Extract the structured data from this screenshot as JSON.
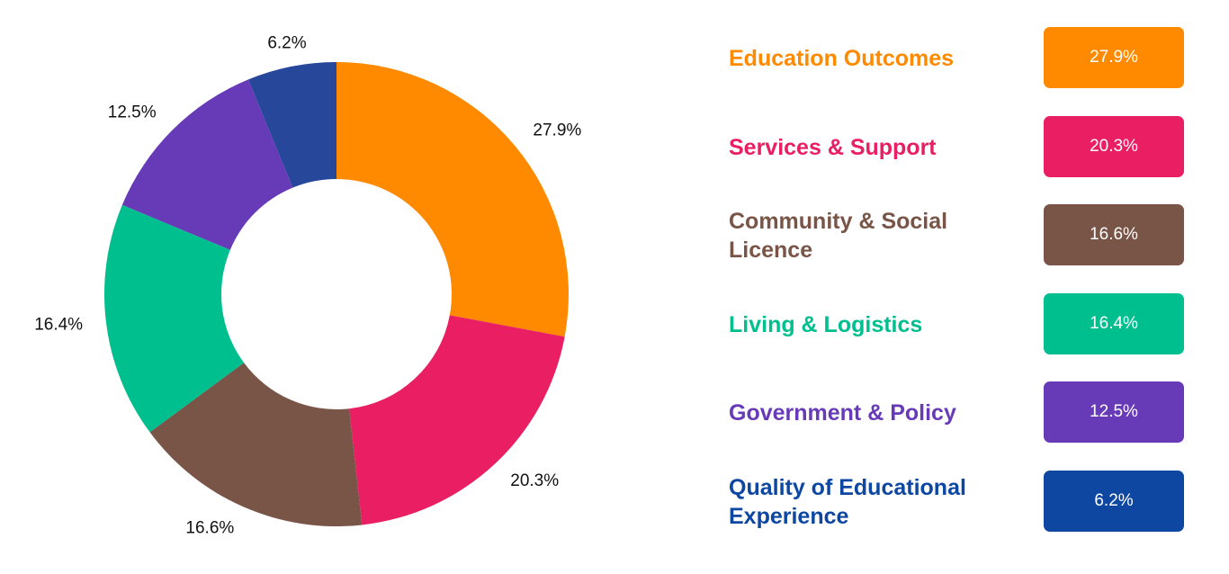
{
  "chart_data": {
    "type": "pie",
    "variant": "donut",
    "title": "",
    "categories": [
      "Education Outcomes",
      "Services & Support",
      "Community & Social Licence",
      "Living & Logistics",
      "Government & Policy",
      "Quality of Educational Experience"
    ],
    "values": [
      27.9,
      20.3,
      16.6,
      16.4,
      12.5,
      6.2
    ],
    "value_labels": [
      "27.9%",
      "20.3%",
      "16.6%",
      "16.4%",
      "12.5%",
      "6.2%"
    ],
    "colors": [
      "#FF8A00",
      "#E91E63",
      "#795548",
      "#00BF8F",
      "#673AB7",
      "#26479A"
    ],
    "legend": {
      "placement": "right",
      "text_colors": [
        "#FF8A00",
        "#E91E63",
        "#795548",
        "#00BF8F",
        "#673AB7",
        "#0D47A1"
      ],
      "badge_colors": [
        "#FF8A00",
        "#E91E63",
        "#795548",
        "#00BF8F",
        "#673AB7",
        "#0D47A1"
      ]
    }
  }
}
